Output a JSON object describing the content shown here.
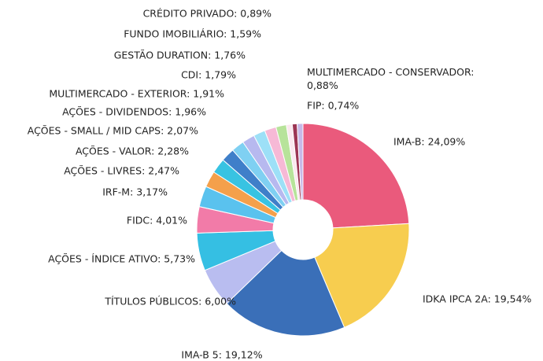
{
  "chart_data": {
    "type": "donut",
    "values": [
      24.09,
      19.54,
      19.12,
      6.0,
      5.73,
      4.01,
      3.17,
      2.47,
      2.28,
      2.07,
      1.96,
      1.91,
      1.79,
      1.76,
      1.59,
      0.89,
      0.74,
      0.88
    ],
    "value_labels": [
      "IMA-B: 24,09%",
      "IDKA IPCA 2A: 19,54%",
      "IMA-B 5: 19,12%",
      "TÍTULOS PÚBLICOS: 6,00%",
      "AÇÕES - ÍNDICE ATIVO: 5,73%",
      "FIDC: 4,01%",
      "IRF-M: 3,17%",
      "AÇÕES - LIVRES: 2,47%",
      "AÇÕES - VALOR: 2,28%",
      "AÇÕES - SMALL / MID CAPS: 2,07%",
      "AÇÕES - DIVIDENDOS: 1,96%",
      "MULTIMERCADO - EXTERIOR: 1,91%",
      "CDI: 1,79%",
      "GESTÃO DURATION: 1,76%",
      "FUNDO IMOBILIÁRIO: 1,59%",
      "CRÉDITO PRIVADO: 0,89%",
      "FIP: 0,74%",
      "MULTIMERCADO - CONSERVADOR: 0,88%"
    ],
    "colors": [
      "#ea5a7c",
      "#f7cd4f",
      "#3a6fb8",
      "#b9bdf0",
      "#35bfe3",
      "#f27ba8",
      "#5ac2ee",
      "#f4a04b",
      "#38c3e2",
      "#3f7fc9",
      "#7fd0f2",
      "#b7b9ef",
      "#9de0f7",
      "#f6b9d6",
      "#b7e39a",
      "#fbe8ef",
      "#9c3554",
      "#c7b9e8"
    ]
  }
}
